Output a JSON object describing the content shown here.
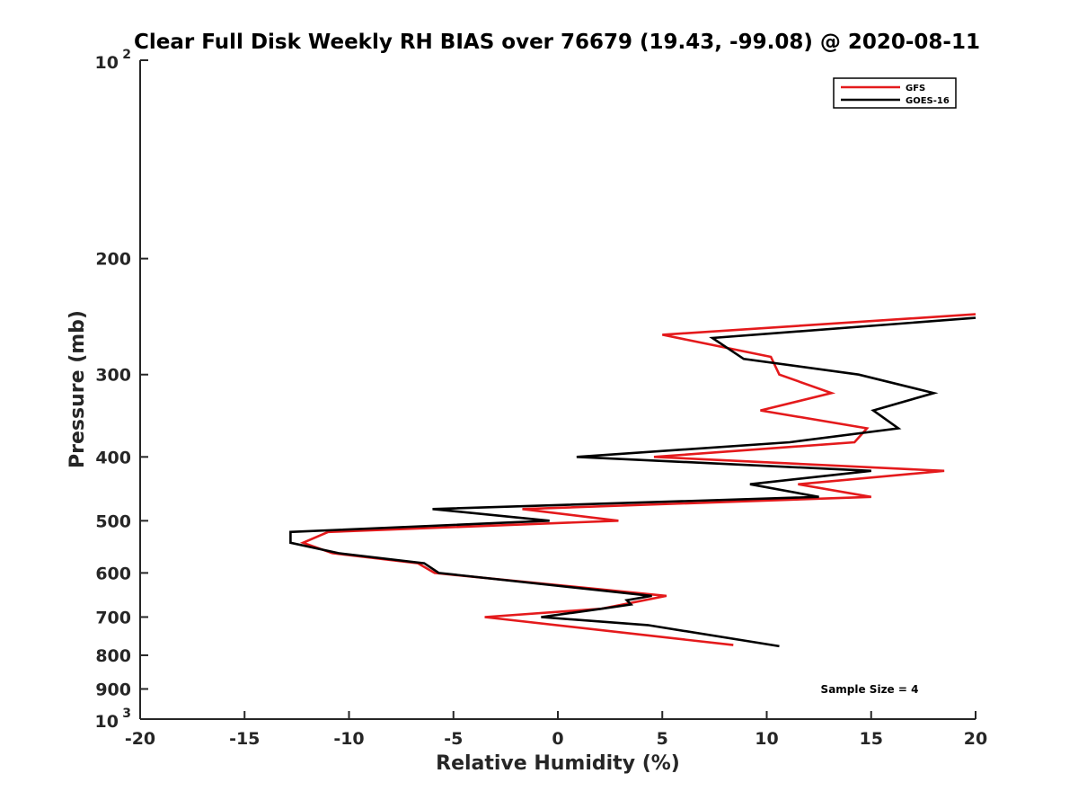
{
  "chart_data": {
    "type": "line",
    "title": "Clear Full Disk Weekly RH BIAS over 76679 (19.43, -99.08) @ 2020-08-11",
    "xlabel": "Relative Humidity (%)",
    "ylabel": "Pressure (mb)",
    "xlim": [
      -20,
      20
    ],
    "ylim": [
      100,
      1000
    ],
    "y_scale": "log",
    "y_reversed": true,
    "grid": false,
    "legend_position": "top-right",
    "x_ticks": [
      "-20",
      "-15",
      "-10",
      "-5",
      "0",
      "5",
      "10",
      "15",
      "20"
    ],
    "y_ticks": [
      {
        "value": 100,
        "base": "10",
        "exp": "2"
      },
      {
        "value": 200,
        "label": "200"
      },
      {
        "value": 300,
        "label": "300"
      },
      {
        "value": 400,
        "label": "400"
      },
      {
        "value": 500,
        "label": "500"
      },
      {
        "value": 600,
        "label": "600"
      },
      {
        "value": 700,
        "label": "700"
      },
      {
        "value": 800,
        "label": "800"
      },
      {
        "value": 900,
        "label": "900"
      },
      {
        "value": 1000,
        "base": "10",
        "exp": "3"
      }
    ],
    "series": [
      {
        "name": "GFS",
        "color": "#e41a1c",
        "points": [
          {
            "x": 20.0,
            "p": 243
          },
          {
            "x": 5.0,
            "p": 261
          },
          {
            "x": 10.2,
            "p": 282
          },
          {
            "x": 10.6,
            "p": 300
          },
          {
            "x": 13.1,
            "p": 320
          },
          {
            "x": 9.7,
            "p": 340
          },
          {
            "x": 14.8,
            "p": 362
          },
          {
            "x": 14.2,
            "p": 380
          },
          {
            "x": 4.6,
            "p": 400
          },
          {
            "x": 18.5,
            "p": 420
          },
          {
            "x": 11.5,
            "p": 440
          },
          {
            "x": 15.0,
            "p": 460
          },
          {
            "x": -1.7,
            "p": 480
          },
          {
            "x": 2.9,
            "p": 500
          },
          {
            "x": -11.0,
            "p": 520
          },
          {
            "x": -12.2,
            "p": 540
          },
          {
            "x": -10.8,
            "p": 560
          },
          {
            "x": -6.7,
            "p": 580
          },
          {
            "x": -5.9,
            "p": 600
          },
          {
            "x": 5.2,
            "p": 650
          },
          {
            "x": 2.1,
            "p": 680
          },
          {
            "x": -3.5,
            "p": 700
          },
          {
            "x": 8.4,
            "p": 772
          }
        ]
      },
      {
        "name": "GOES-16",
        "color": "#000000",
        "points": [
          {
            "x": 20.0,
            "p": 246
          },
          {
            "x": 7.4,
            "p": 264
          },
          {
            "x": 8.9,
            "p": 284
          },
          {
            "x": 14.4,
            "p": 300
          },
          {
            "x": 18.0,
            "p": 320
          },
          {
            "x": 15.1,
            "p": 340
          },
          {
            "x": 16.3,
            "p": 362
          },
          {
            "x": 11.1,
            "p": 380
          },
          {
            "x": 0.9,
            "p": 400
          },
          {
            "x": 15.0,
            "p": 420
          },
          {
            "x": 9.2,
            "p": 440
          },
          {
            "x": 12.5,
            "p": 460
          },
          {
            "x": -6.0,
            "p": 480
          },
          {
            "x": -0.4,
            "p": 500
          },
          {
            "x": -12.8,
            "p": 520
          },
          {
            "x": -12.8,
            "p": 540
          },
          {
            "x": -10.5,
            "p": 560
          },
          {
            "x": -6.4,
            "p": 580
          },
          {
            "x": -5.7,
            "p": 600
          },
          {
            "x": 4.5,
            "p": 650
          },
          {
            "x": 3.3,
            "p": 660
          },
          {
            "x": 3.5,
            "p": 670
          },
          {
            "x": 2.1,
            "p": 680
          },
          {
            "x": -0.8,
            "p": 700
          },
          {
            "x": 4.3,
            "p": 720
          },
          {
            "x": 10.6,
            "p": 775
          }
        ]
      }
    ],
    "annotation": "Sample Size = 4"
  }
}
